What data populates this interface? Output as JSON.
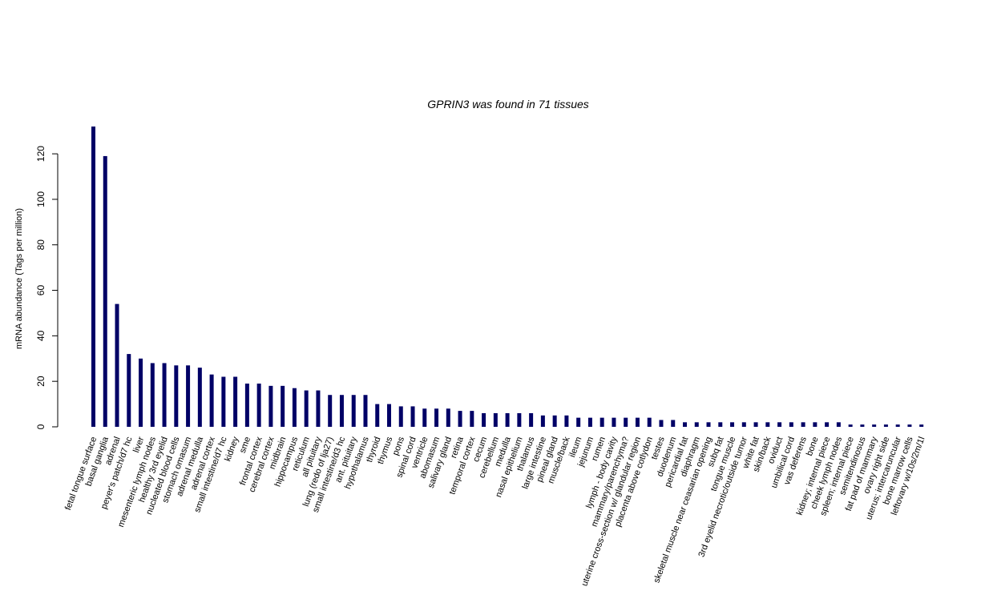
{
  "chart_data": {
    "type": "bar",
    "title": "GPRIN3  was found in  71  tissues",
    "xlabel": "",
    "ylabel": "mRNA abundance (Tags per million)",
    "ylim": [
      0,
      132
    ],
    "yticks": [
      0,
      20,
      40,
      60,
      80,
      100,
      120
    ],
    "bar_color": "#000066",
    "categories": [
      "fetal tongue surface",
      "basal ganglia",
      "adrenal",
      "peyer's patch/d7 hc",
      "liver",
      "mesenteric lymph nodes",
      "healthy 3rd eyelid",
      "nucleated blood cells",
      "stomach omasum",
      "adrenal medulla",
      "adrenal cortex",
      "small intestine/d7 hc",
      "kidney",
      "sme",
      "frontal cortex",
      "cerebral cortex",
      "midbrain",
      "hippocampus",
      "reticulum",
      "all pituitary",
      "lung (redo of lja27)",
      "small intestine/d3 hc",
      "ant. pituitary",
      "hypothalamus",
      "thyroid",
      "thymus",
      "pons",
      "spinal cord",
      "ventricle",
      "abomasum",
      "salivary gland",
      "retina",
      "temporal cortex",
      "cecum",
      "cerebellum",
      "medulla",
      "nasal epithelium",
      "thalamus",
      "large intestine",
      "pineal gland",
      "muscle/back",
      "ileum",
      "jejunum",
      "rumen",
      "lymph - body cavity",
      "mammary/parenchyma?",
      "uterine cross-section w/ glandular region",
      "placenta above cotlydon",
      "testes",
      "duodenum",
      "pericardial fat",
      "diaphragm",
      "skeletal muscle near ceasarian opening",
      "subq fat",
      "tongue muscle",
      "3rd eyelid necrotic/outside tumor",
      "white fat",
      "skin/back",
      "oviduct",
      "umbilical cord",
      "vas deferens",
      "bone",
      "kidney; internal piece",
      "cheek lymph nodes",
      "spleen; internal piece",
      "semitendinosus",
      "fat pad of mammary",
      "ovary right side",
      "uterus; intercaruncular",
      "bone marrow cells",
      "leftovary w/10s/2m/1l"
    ],
    "values": [
      132,
      119,
      54,
      32,
      30,
      28,
      28,
      27,
      27,
      26,
      23,
      22,
      22,
      19,
      19,
      18,
      18,
      17,
      16,
      16,
      14,
      14,
      14,
      14,
      10,
      10,
      9,
      9,
      8,
      8,
      8,
      7,
      7,
      6,
      6,
      6,
      6,
      6,
      5,
      5,
      5,
      4,
      4,
      4,
      4,
      4,
      4,
      4,
      3,
      3,
      2,
      2,
      2,
      2,
      2,
      2,
      2,
      2,
      2,
      2,
      2,
      2,
      2,
      2,
      1,
      1,
      1,
      1,
      1,
      1,
      1
    ]
  }
}
